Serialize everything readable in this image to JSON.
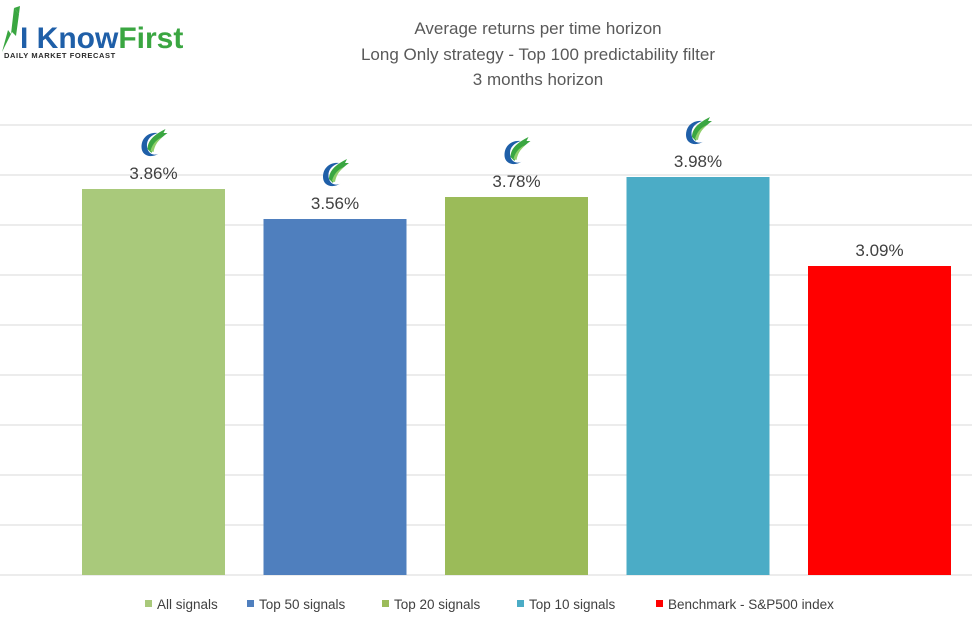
{
  "logo": {
    "brand_prefix": "I Know",
    "brand_suffix": "First",
    "tagline": "DAILY MARKET FORECAST",
    "prefix_color": "#1f5fa8",
    "suffix_color": "#3aa641"
  },
  "chart_data": {
    "type": "bar",
    "title": [
      "Average returns per time horizon",
      "Long Only strategy - Top 100 predictability filter",
      "3 months horizon"
    ],
    "categories": [
      "All signals",
      "Top 50 signals",
      "Top 20 signals",
      "Top 10 signals",
      "Benchmark - S&P500 index"
    ],
    "values": [
      3.86,
      3.56,
      3.78,
      3.98,
      3.09
    ],
    "labels": [
      "3.86%",
      "3.56%",
      "3.78%",
      "3.98%",
      "3.09%"
    ],
    "colors": [
      "#a9c97b",
      "#4f7fbe",
      "#9bbb59",
      "#4bacc6",
      "#ff0000"
    ],
    "marker_icon": [
      true,
      true,
      true,
      true,
      false
    ],
    "unit": "%",
    "ylim": [
      0,
      4.5
    ],
    "ytick_step": 0.5,
    "grid": true,
    "legend_position": "bottom"
  }
}
